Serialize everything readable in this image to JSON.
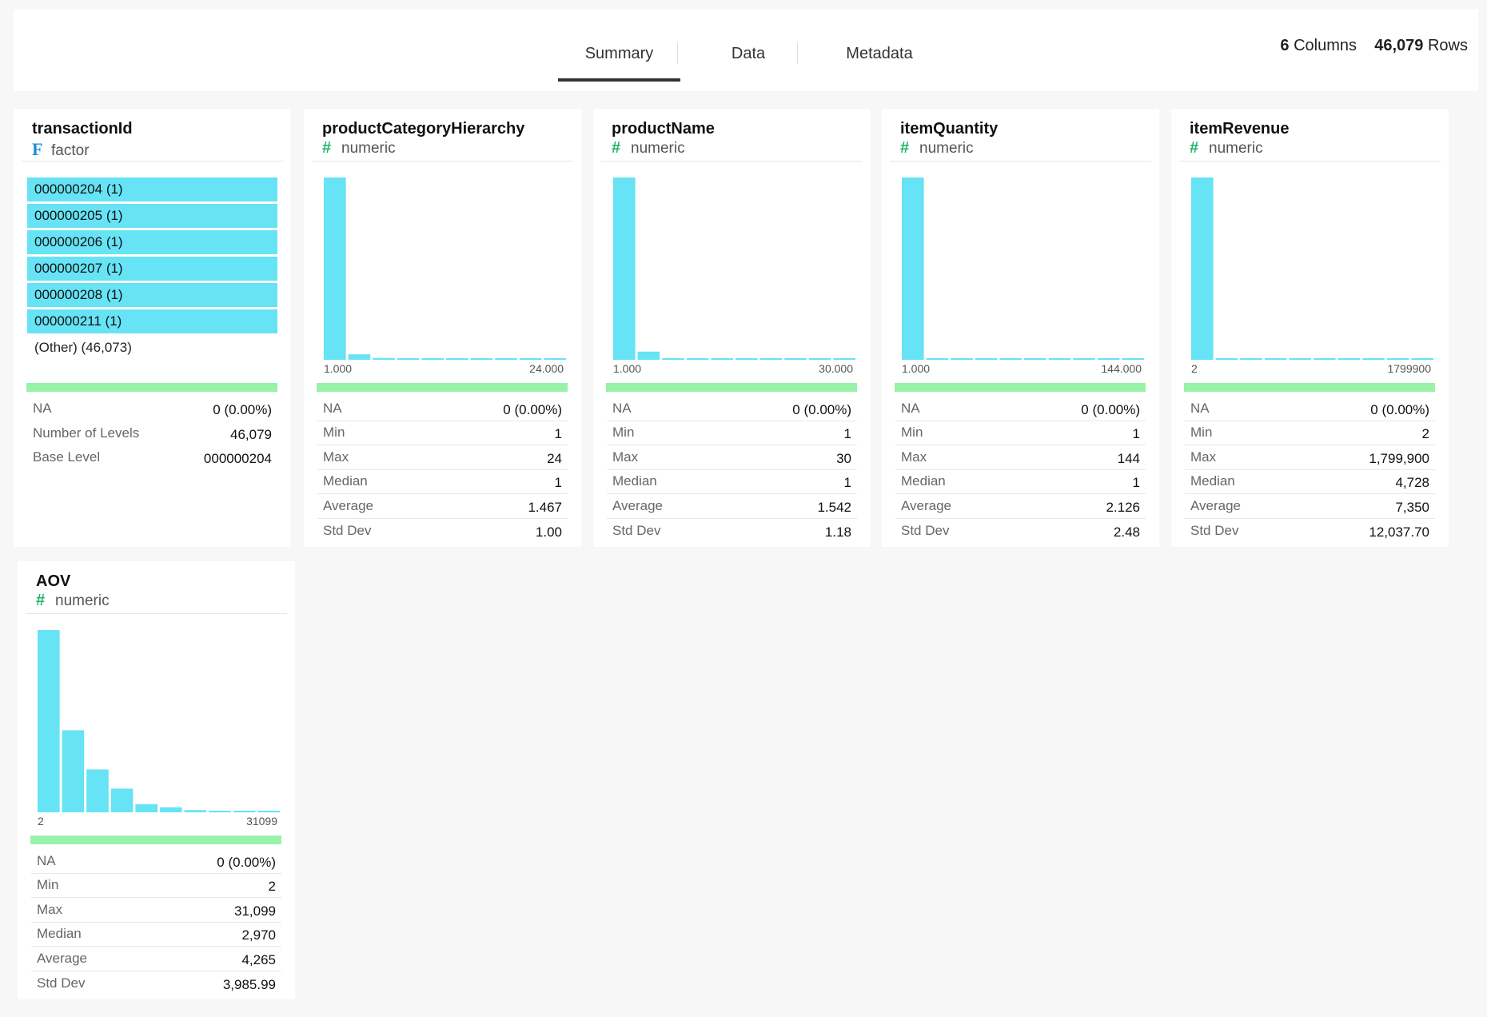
{
  "header": {
    "tabs": [
      {
        "label": "Summary",
        "active": true
      },
      {
        "label": "Data",
        "active": false
      },
      {
        "label": "Metadata",
        "active": false
      }
    ],
    "columns_count": "6",
    "columns_label": "Columns",
    "rows_count": "46,079",
    "rows_label": "Rows"
  },
  "colors": {
    "bar": "#66e3f4",
    "green_band": "#98f2a7",
    "factor_icon": "#1a8fd6",
    "numeric_icon": "#1fb36a"
  },
  "cards": [
    {
      "name": "transactionId",
      "type_icon": "F",
      "type": "factor",
      "levels": [
        "000000204 (1)",
        "000000205 (1)",
        "000000206 (1)",
        "000000207 (1)",
        "000000208 (1)",
        "000000211 (1)"
      ],
      "other": "(Other) (46,073)",
      "stats": [
        {
          "label": "NA",
          "value": "0 (0.00%)"
        },
        {
          "label": "Number of Levels",
          "value": "46,079"
        },
        {
          "label": "Base Level",
          "value": "000000204"
        }
      ]
    },
    {
      "name": "productCategoryHierarchy",
      "type_icon": "#",
      "type": "numeric",
      "hist_min": "1.000",
      "hist_max": "24.000",
      "stats": [
        {
          "label": "NA",
          "value": "0 (0.00%)"
        },
        {
          "label": "Min",
          "value": "1"
        },
        {
          "label": "Max",
          "value": "24"
        },
        {
          "label": "Median",
          "value": "1"
        },
        {
          "label": "Average",
          "value": "1.467"
        },
        {
          "label": "Std Dev",
          "value": "1.00"
        }
      ]
    },
    {
      "name": "productName",
      "type_icon": "#",
      "type": "numeric",
      "hist_min": "1.000",
      "hist_max": "30.000",
      "stats": [
        {
          "label": "NA",
          "value": "0 (0.00%)"
        },
        {
          "label": "Min",
          "value": "1"
        },
        {
          "label": "Max",
          "value": "30"
        },
        {
          "label": "Median",
          "value": "1"
        },
        {
          "label": "Average",
          "value": "1.542"
        },
        {
          "label": "Std Dev",
          "value": "1.18"
        }
      ]
    },
    {
      "name": "itemQuantity",
      "type_icon": "#",
      "type": "numeric",
      "hist_min": "1.000",
      "hist_max": "144.000",
      "stats": [
        {
          "label": "NA",
          "value": "0 (0.00%)"
        },
        {
          "label": "Min",
          "value": "1"
        },
        {
          "label": "Max",
          "value": "144"
        },
        {
          "label": "Median",
          "value": "1"
        },
        {
          "label": "Average",
          "value": "2.126"
        },
        {
          "label": "Std Dev",
          "value": "2.48"
        }
      ]
    },
    {
      "name": "itemRevenue",
      "type_icon": "#",
      "type": "numeric",
      "hist_min": "2",
      "hist_max": "1799900",
      "stats": [
        {
          "label": "NA",
          "value": "0 (0.00%)"
        },
        {
          "label": "Min",
          "value": "2"
        },
        {
          "label": "Max",
          "value": "1,799,900"
        },
        {
          "label": "Median",
          "value": "4,728"
        },
        {
          "label": "Average",
          "value": "7,350"
        },
        {
          "label": "Std Dev",
          "value": "12,037.70"
        }
      ]
    },
    {
      "name": "AOV",
      "type_icon": "#",
      "type": "numeric",
      "hist_min": "2",
      "hist_max": "31099",
      "stats": [
        {
          "label": "NA",
          "value": "0 (0.00%)"
        },
        {
          "label": "Min",
          "value": "2"
        },
        {
          "label": "Max",
          "value": "31,099"
        },
        {
          "label": "Median",
          "value": "2,970"
        },
        {
          "label": "Average",
          "value": "4,265"
        },
        {
          "label": "Std Dev",
          "value": "3,985.99"
        }
      ]
    }
  ],
  "chart_data": [
    {
      "type": "bar",
      "name": "productCategoryHierarchy",
      "xlim": [
        1,
        24
      ],
      "values": [
        1.0,
        0.03,
        0.01,
        0.008,
        0.006,
        0.005,
        0.004,
        0.004,
        0.004,
        0.004
      ]
    },
    {
      "type": "bar",
      "name": "productName",
      "xlim": [
        1,
        30
      ],
      "values": [
        1.0,
        0.045,
        0.008,
        0.006,
        0.005,
        0.004,
        0.004,
        0.004,
        0.004,
        0.004
      ]
    },
    {
      "type": "bar",
      "name": "itemQuantity",
      "xlim": [
        1,
        144
      ],
      "values": [
        1.0,
        0.004,
        0.004,
        0.004,
        0.004,
        0.004,
        0.004,
        0.004,
        0.004,
        0.004
      ]
    },
    {
      "type": "bar",
      "name": "itemRevenue",
      "xlim": [
        2,
        1799900
      ],
      "values": [
        1.0,
        0.004,
        0.004,
        0.004,
        0.004,
        0.004,
        0.004,
        0.004,
        0.004,
        0.004
      ]
    },
    {
      "type": "bar",
      "name": "AOV",
      "xlim": [
        2,
        31099
      ],
      "values": [
        1.0,
        0.45,
        0.235,
        0.13,
        0.045,
        0.028,
        0.012,
        0.007,
        0.005,
        0.004
      ]
    }
  ]
}
